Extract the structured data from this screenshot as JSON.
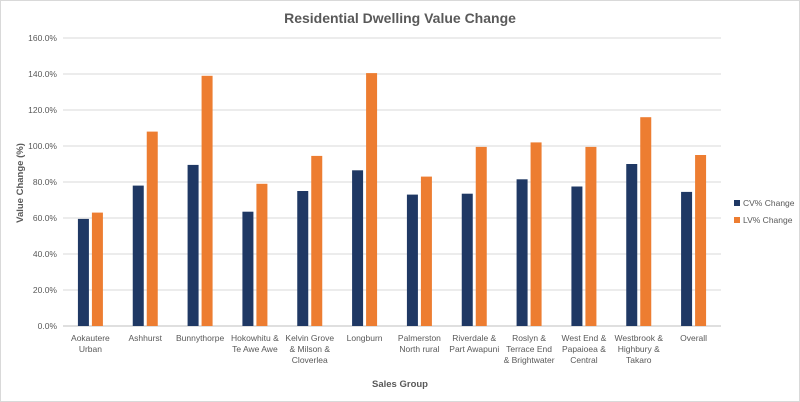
{
  "chart_data": {
    "type": "bar",
    "title": "Residential Dwelling Value Change",
    "xlabel": "Sales Group",
    "ylabel": "Value Change (%)",
    "ylim": [
      0,
      160
    ],
    "yticks": [
      "0.0%",
      "20.0%",
      "40.0%",
      "60.0%",
      "80.0%",
      "100.0%",
      "120.0%",
      "140.0%",
      "160.0%"
    ],
    "grid": true,
    "legend_position": "right",
    "categories": [
      [
        "Aokautere",
        "Urban"
      ],
      [
        "Ashhurst"
      ],
      [
        "Bunnythorpe"
      ],
      [
        "Hokowhitu &",
        "Te Awe Awe"
      ],
      [
        "Kelvin Grove",
        "& Milson &",
        "Cloverlea"
      ],
      [
        "Longburn"
      ],
      [
        "Palmerston",
        "North rural"
      ],
      [
        "Riverdale &",
        "Part Awapuni"
      ],
      [
        "Roslyn &",
        "Terrace End",
        "& Brightwater"
      ],
      [
        "West End &",
        "Papaioea &",
        "Central"
      ],
      [
        "Westbrook &",
        "Highbury &",
        "Takaro"
      ],
      [
        "Overall"
      ]
    ],
    "series": [
      {
        "name": "CV% Change",
        "color": "#1f3864",
        "values": [
          59.5,
          78.0,
          89.5,
          63.5,
          75.0,
          86.5,
          73.0,
          73.5,
          81.5,
          77.5,
          90.0,
          74.5
        ]
      },
      {
        "name": "LV% Change",
        "color": "#ed7d31",
        "values": [
          63.0,
          108.0,
          139.0,
          79.0,
          94.5,
          140.5,
          83.0,
          99.5,
          102.0,
          99.5,
          116.0,
          95.0
        ]
      }
    ]
  }
}
